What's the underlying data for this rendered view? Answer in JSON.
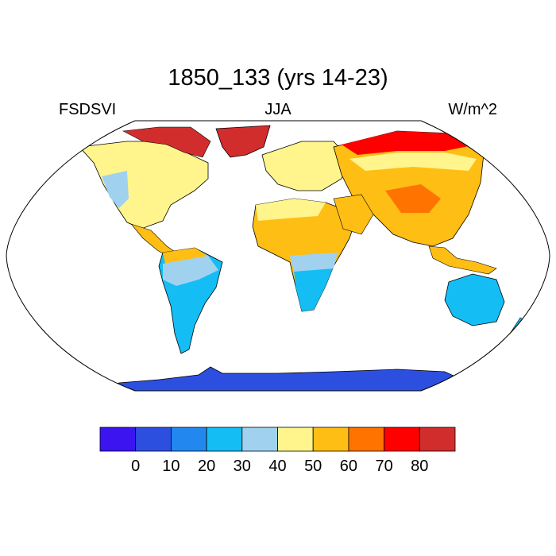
{
  "title": "1850_133 (yrs 14-23)",
  "left_label": "FSDSVI",
  "center_label": "JJA",
  "right_label": "W/m^2",
  "colorbar": {
    "colors": [
      "#3c14f0",
      "#2d4fe0",
      "#2387f0",
      "#14bef5",
      "#a0d2f0",
      "#fff58c",
      "#ffbe14",
      "#ff7300",
      "#ff0000",
      "#d22d2d"
    ],
    "ticks": [
      "0",
      "10",
      "20",
      "30",
      "40",
      "50",
      "60",
      "70",
      "80"
    ]
  },
  "map": {
    "projection": "Robinson",
    "ocean_color": "#ffffff",
    "regions": [
      {
        "name": "Greenland",
        "value_class": 9
      },
      {
        "name": "Canadian Arctic",
        "value_class": 9
      },
      {
        "name": "North America",
        "value_class": 5
      },
      {
        "name": "South America",
        "value_class": 3
      },
      {
        "name": "Africa North",
        "value_class": 6
      },
      {
        "name": "Africa South",
        "value_class": 3
      },
      {
        "name": "Europe",
        "value_class": 5
      },
      {
        "name": "Asia",
        "value_class": 6
      },
      {
        "name": "Tibet",
        "value_class": 7
      },
      {
        "name": "Siberia North",
        "value_class": 8
      },
      {
        "name": "Australia",
        "value_class": 3
      },
      {
        "name": "Antarctica",
        "value_class": 1
      }
    ]
  }
}
